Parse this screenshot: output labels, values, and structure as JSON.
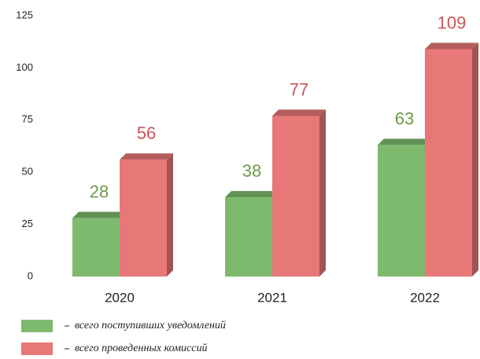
{
  "chart_data": {
    "type": "bar",
    "categories": [
      "2020",
      "2021",
      "2022"
    ],
    "series": [
      {
        "name": "всего поступивших уведомлений",
        "color": "#7dba6e",
        "values": [
          28,
          38,
          63
        ]
      },
      {
        "name": "всего проведенных комиссий",
        "color": "#e87777",
        "values": [
          56,
          77,
          109
        ]
      }
    ],
    "ylim": [
      0,
      125
    ],
    "yticks": [
      0,
      25,
      50,
      75,
      100,
      125
    ],
    "grid": false,
    "legend": "bottom-left"
  }
}
